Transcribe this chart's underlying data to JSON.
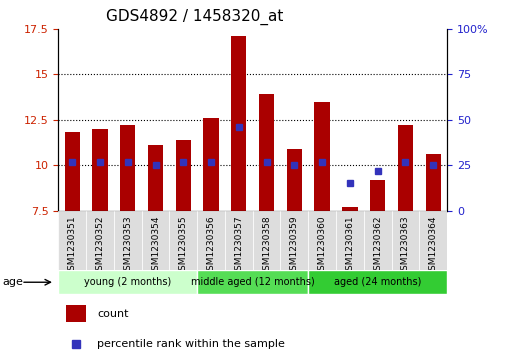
{
  "title": "GDS4892 / 1458320_at",
  "samples": [
    "GSM1230351",
    "GSM1230352",
    "GSM1230353",
    "GSM1230354",
    "GSM1230355",
    "GSM1230356",
    "GSM1230357",
    "GSM1230358",
    "GSM1230359",
    "GSM1230360",
    "GSM1230361",
    "GSM1230362",
    "GSM1230363",
    "GSM1230364"
  ],
  "counts": [
    11.8,
    12.0,
    12.2,
    11.1,
    11.4,
    12.6,
    17.1,
    13.9,
    10.9,
    13.5,
    7.7,
    9.2,
    12.2,
    10.6
  ],
  "percentiles": [
    27,
    27,
    27,
    25,
    27,
    27,
    46,
    27,
    25,
    27,
    15,
    22,
    27,
    25
  ],
  "ymin": 7.5,
  "ymax": 17.5,
  "yticks": [
    7.5,
    10.0,
    12.5,
    15.0,
    17.5
  ],
  "ytick_labels": [
    "7.5",
    "10",
    "12.5",
    "15",
    "17.5"
  ],
  "right_yticks": [
    0,
    25,
    50,
    75,
    100
  ],
  "right_ytick_labels": [
    "0",
    "25",
    "50",
    "75",
    "100%"
  ],
  "bar_color": "#aa0000",
  "percentile_color": "#3333bb",
  "groups": [
    {
      "label": "young (2 months)",
      "start": 0,
      "end": 5,
      "color": "#ccffcc"
    },
    {
      "label": "middle aged (12 months)",
      "start": 5,
      "end": 9,
      "color": "#55dd55"
    },
    {
      "label": "aged (24 months)",
      "start": 9,
      "end": 14,
      "color": "#33cc33"
    }
  ],
  "age_label": "age",
  "legend_count_label": "count",
  "legend_pct_label": "percentile rank within the sample",
  "title_fontsize": 11,
  "axis_label_color_left": "#cc2200",
  "axis_label_color_right": "#2222cc",
  "grid_dotted_at": [
    10.0,
    12.5,
    15.0
  ],
  "bar_width": 0.55,
  "xtick_bg_color": "#dddddd"
}
